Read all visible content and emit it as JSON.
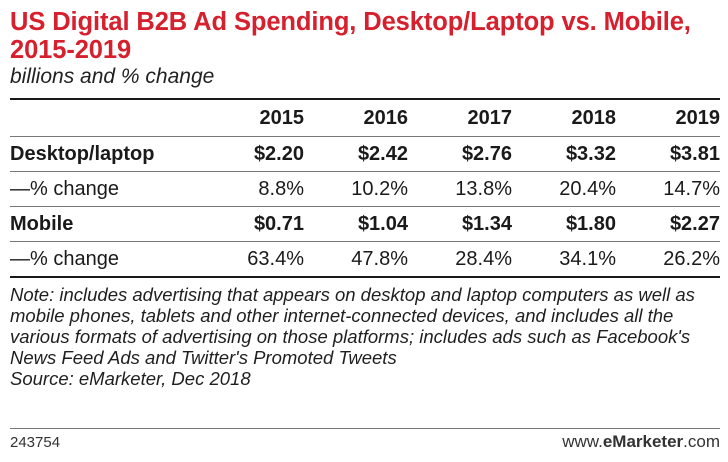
{
  "title": "US Digital B2B Ad Spending, Desktop/Laptop vs. Mobile, 2015-2019",
  "subtitle": "billions and % change",
  "table": {
    "columns": [
      "",
      "2015",
      "2016",
      "2017",
      "2018",
      "2019"
    ],
    "rows": [
      {
        "label": "Desktop/laptop",
        "bold": true,
        "values": [
          "$2.20",
          "$2.42",
          "$2.76",
          "$3.32",
          "$3.81"
        ]
      },
      {
        "label": "—% change",
        "bold": false,
        "values": [
          "8.8%",
          "10.2%",
          "13.8%",
          "20.4%",
          "14.7%"
        ]
      },
      {
        "label": "Mobile",
        "bold": true,
        "values": [
          "$0.71",
          "$1.04",
          "$1.34",
          "$1.80",
          "$2.27"
        ]
      },
      {
        "label": "—% change",
        "bold": false,
        "values": [
          "63.4%",
          "47.8%",
          "28.4%",
          "34.1%",
          "26.2%"
        ]
      }
    ]
  },
  "note": "Note: includes advertising that appears on desktop and laptop computers as well as mobile phones, tablets and other internet-connected devices, and includes all the various formats of advertising on those platforms; includes ads such as Facebook's News Feed Ads and Twitter's Promoted Tweets",
  "source": "Source: eMarketer, Dec 2018",
  "footer": {
    "chart_id": "243754",
    "brand_prefix": "www.",
    "brand_e": "e",
    "brand_name": "Marketer",
    "brand_suffix": ".com"
  },
  "colors": {
    "title": "#d6202e",
    "rule": "#1a1a1a"
  }
}
